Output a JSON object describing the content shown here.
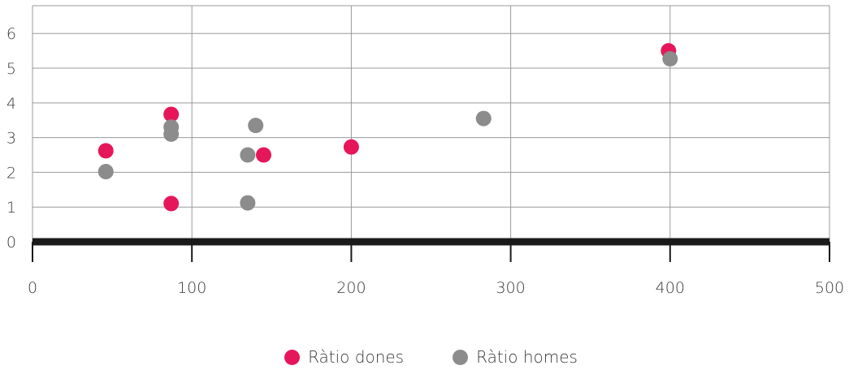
{
  "chart_data": {
    "type": "scatter",
    "title": "",
    "xlabel": "",
    "ylabel": "",
    "xlim": [
      0,
      500
    ],
    "ylim": [
      0,
      6.8
    ],
    "x_ticks": [
      0,
      100,
      200,
      300,
      400,
      500
    ],
    "y_ticks": [
      0,
      1,
      2,
      3,
      4,
      5,
      6
    ],
    "x_tick_labels": [
      "0",
      "100",
      "200",
      "300",
      "400",
      "500"
    ],
    "y_tick_labels": [
      "0",
      "1",
      "2",
      "3",
      "4",
      "5",
      "6"
    ],
    "grid": true,
    "legend_position": "bottom",
    "series": [
      {
        "name": "Ràtio dones",
        "color": "#e5175a",
        "points": [
          {
            "x": 46,
            "y": 2.62
          },
          {
            "x": 87,
            "y": 3.67
          },
          {
            "x": 87,
            "y": 1.1
          },
          {
            "x": 145,
            "y": 2.5
          },
          {
            "x": 200,
            "y": 2.73
          },
          {
            "x": 399,
            "y": 5.5
          }
        ]
      },
      {
        "name": "Ràtio homes",
        "color": "#8c8c8c",
        "points": [
          {
            "x": 46,
            "y": 2.02
          },
          {
            "x": 87,
            "y": 3.3
          },
          {
            "x": 87,
            "y": 3.1
          },
          {
            "x": 135,
            "y": 2.5
          },
          {
            "x": 140,
            "y": 3.35
          },
          {
            "x": 135,
            "y": 1.12
          },
          {
            "x": 283,
            "y": 3.55
          },
          {
            "x": 400,
            "y": 5.27
          }
        ]
      }
    ]
  }
}
